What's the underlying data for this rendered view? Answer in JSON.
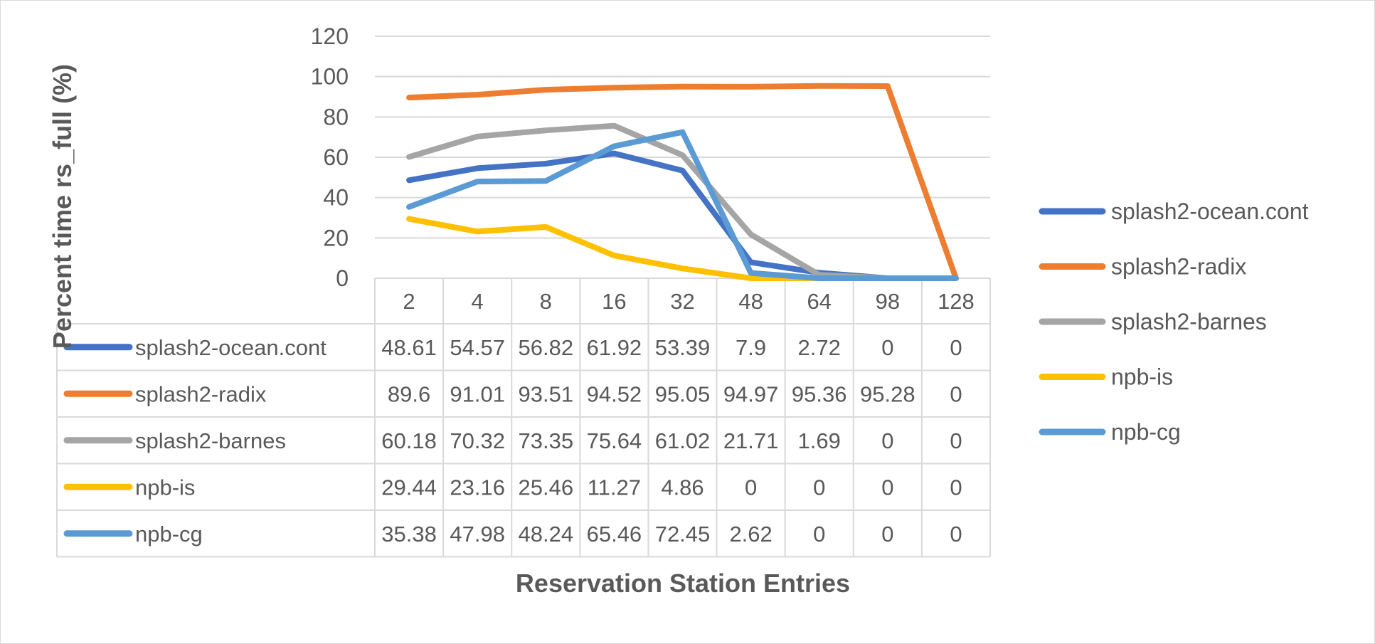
{
  "chart_data": {
    "type": "line",
    "title": "",
    "xlabel": "Reservation Station Entries",
    "ylabel": "Percent time rs_full (%)",
    "ylim": [
      0,
      120
    ],
    "yticks": [
      0,
      20,
      40,
      60,
      80,
      100,
      120
    ],
    "grid": true,
    "legend_position": "right",
    "data_table": true,
    "categories": [
      "2",
      "4",
      "8",
      "16",
      "32",
      "48",
      "64",
      "98",
      "128"
    ],
    "series": [
      {
        "name": "splash2-ocean.cont",
        "color": "#4472C4",
        "values": [
          48.61,
          54.57,
          56.82,
          61.92,
          53.39,
          7.9,
          2.72,
          0,
          0
        ],
        "labels": [
          "48.61",
          "54.57",
          "56.82",
          "61.92",
          "53.39",
          "7.9",
          "2.72",
          "0",
          "0"
        ]
      },
      {
        "name": "splash2-radix",
        "color": "#ED7D31",
        "values": [
          89.6,
          91.01,
          93.51,
          94.52,
          95.05,
          94.97,
          95.36,
          95.28,
          0
        ],
        "labels": [
          "89.6",
          "91.01",
          "93.51",
          "94.52",
          "95.05",
          "94.97",
          "95.36",
          "95.28",
          "0"
        ]
      },
      {
        "name": "splash2-barnes",
        "color": "#A5A5A5",
        "values": [
          60.18,
          70.32,
          73.35,
          75.64,
          61.02,
          21.71,
          1.69,
          0,
          0
        ],
        "labels": [
          "60.18",
          "70.32",
          "73.35",
          "75.64",
          "61.02",
          "21.71",
          "1.69",
          "0",
          "0"
        ]
      },
      {
        "name": "npb-is",
        "color": "#FFC000",
        "values": [
          29.44,
          23.16,
          25.46,
          11.27,
          4.86,
          0,
          0,
          0,
          0
        ],
        "labels": [
          "29.44",
          "23.16",
          "25.46",
          "11.27",
          "4.86",
          "0",
          "0",
          "0",
          "0"
        ]
      },
      {
        "name": "npb-cg",
        "color": "#5B9BD5",
        "values": [
          35.38,
          47.98,
          48.24,
          65.46,
          72.45,
          2.62,
          0,
          0,
          0
        ],
        "labels": [
          "35.38",
          "47.98",
          "48.24",
          "65.46",
          "72.45",
          "2.62",
          "0",
          "0",
          "0"
        ]
      }
    ]
  }
}
